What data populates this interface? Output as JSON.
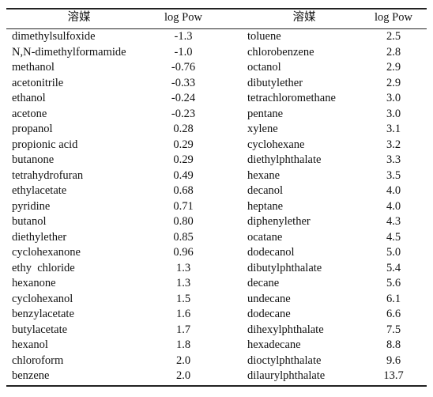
{
  "table": {
    "header": [
      "溶媒",
      "log Pow",
      "溶媒",
      "log Pow"
    ],
    "rows": [
      [
        "dimethylsulfoxide",
        "-1.3",
        "toluene",
        "2.5"
      ],
      [
        "N,N-dimethylformamide",
        "-1.0",
        "chlorobenzene",
        "2.8"
      ],
      [
        "methanol",
        "-0.76",
        "octanol",
        "2.9"
      ],
      [
        "acetonitrile",
        "-0.33",
        "dibutylether",
        "2.9"
      ],
      [
        "ethanol",
        "-0.24",
        "tetrachloromethane",
        "3.0"
      ],
      [
        "acetone",
        "-0.23",
        "pentane",
        "3.0"
      ],
      [
        "propanol",
        "0.28",
        "xylene",
        "3.1"
      ],
      [
        "propionic acid",
        "0.29",
        "cyclohexane",
        "3.2"
      ],
      [
        "butanone",
        "0.29",
        "diethylphthalate",
        "3.3"
      ],
      [
        "tetrahydrofuran",
        "0.49",
        "hexane",
        "3.5"
      ],
      [
        "ethylacetate",
        "0.68",
        "decanol",
        "4.0"
      ],
      [
        "pyridine",
        "0.71",
        "heptane",
        "4.0"
      ],
      [
        "butanol",
        "0.80",
        "diphenylether",
        "4.3"
      ],
      [
        "diethylether",
        "0.85",
        "ocatane",
        "4.5"
      ],
      [
        "cyclohexanone",
        "0.96",
        "dodecanol",
        "5.0"
      ],
      [
        "ethy  chloride",
        "1.3",
        "dibutylphthalate",
        "5.4"
      ],
      [
        "hexanone",
        "1.3",
        "decane",
        "5.6"
      ],
      [
        "cyclohexanol",
        "1.5",
        "undecane",
        "6.1"
      ],
      [
        "benzylacetate",
        "1.6",
        "dodecane",
        "6.6"
      ],
      [
        "butylacetate",
        "1.7",
        "dihexylphthalate",
        "7.5"
      ],
      [
        "hexanol",
        "1.8",
        "hexadecane",
        "8.8"
      ],
      [
        "chloroform",
        "2.0",
        "dioctylphthalate",
        "9.6"
      ],
      [
        "benzene",
        "2.0",
        "dilaurylphthalate",
        "13.7"
      ]
    ]
  }
}
